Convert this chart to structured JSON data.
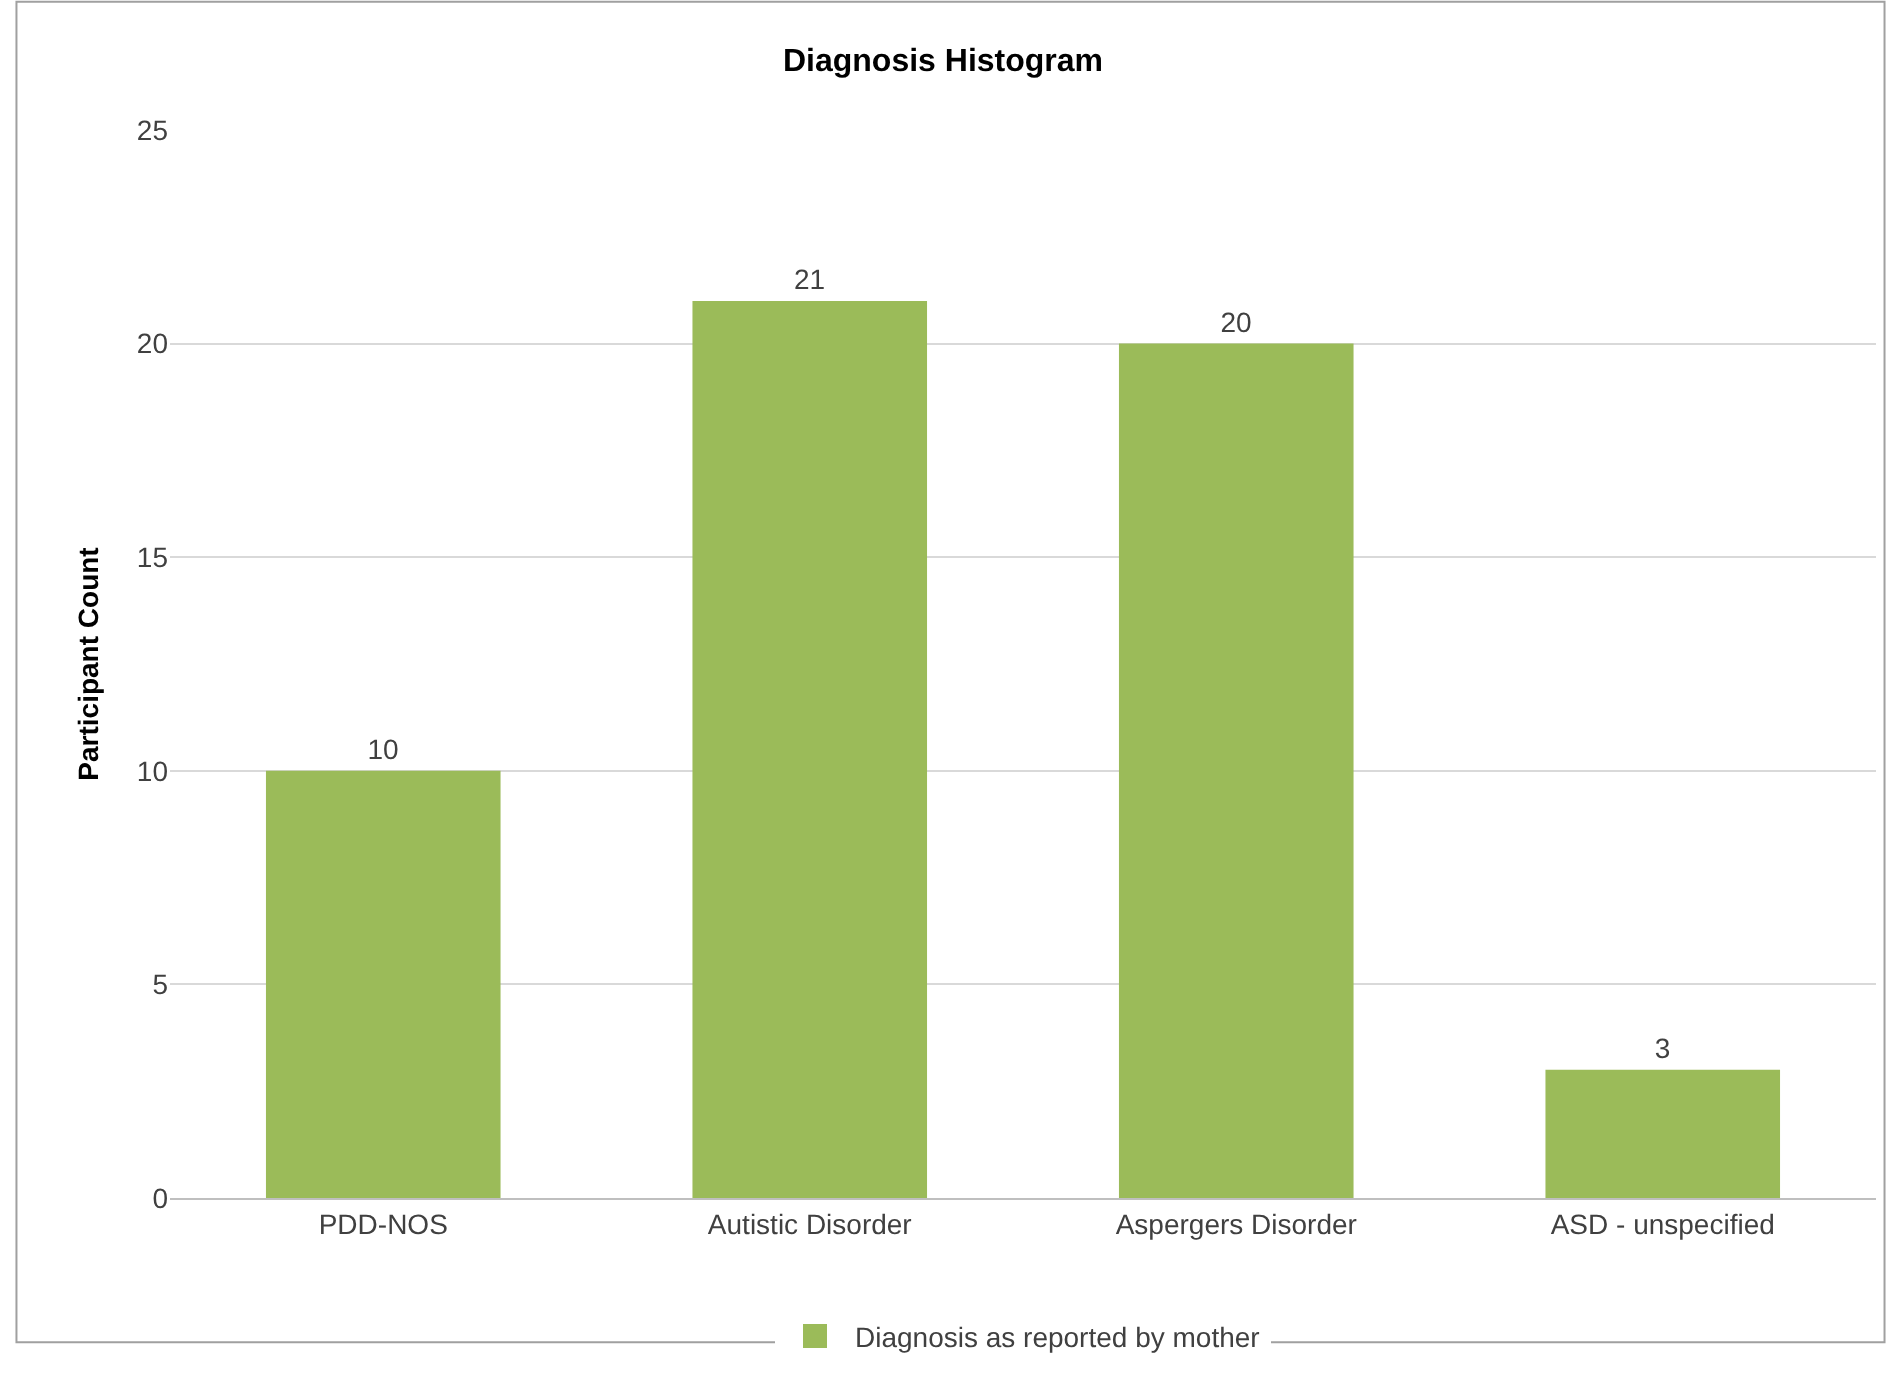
{
  "chart_data": {
    "type": "bar",
    "title": "Diagnosis Histogram",
    "ylabel": "Participant Count",
    "categories": [
      "PDD-NOS",
      "Autistic Disorder",
      "Aspergers Disorder",
      "ASD - unspecified"
    ],
    "series": [
      {
        "name": "Diagnosis as reported by mother",
        "color": "#9bbb59",
        "values": [
          10,
          21,
          20,
          3
        ]
      }
    ],
    "ylim": [
      0,
      25
    ],
    "yticks": [
      0,
      5,
      10,
      15,
      20,
      25
    ],
    "grid": "y",
    "legend": "bottom",
    "data_labels": true
  }
}
